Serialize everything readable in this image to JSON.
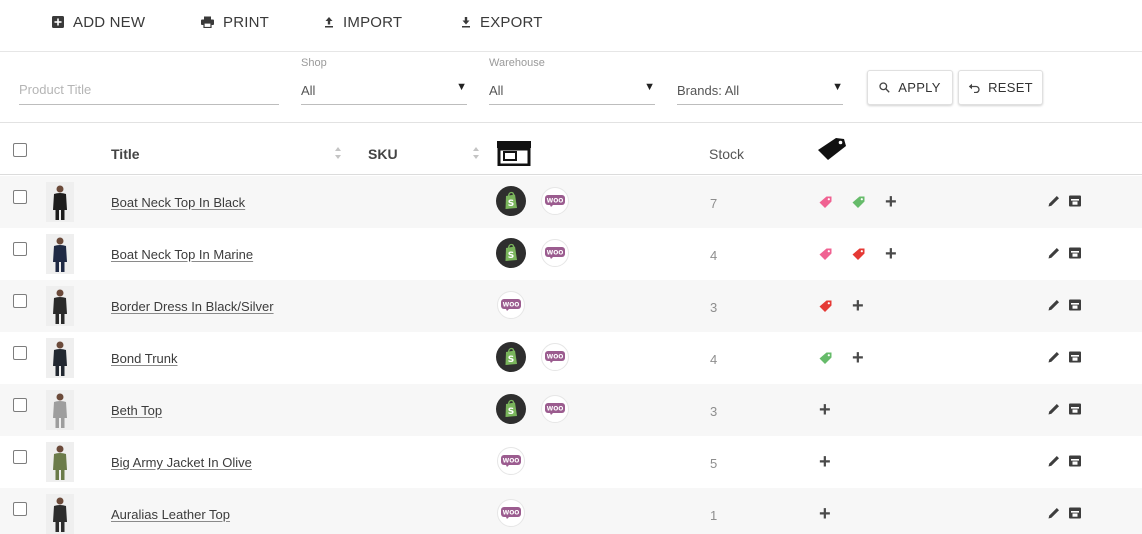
{
  "toolbar": {
    "add_new": "ADD NEW",
    "print": "PRINT",
    "import": "IMPORT",
    "export": "EXPORT"
  },
  "filters": {
    "product_title_placeholder": "Product Title",
    "shop_label": "Shop",
    "shop_value": "All",
    "warehouse_label": "Warehouse",
    "warehouse_value": "All",
    "brands_value": "Brands: All",
    "apply": "APPLY",
    "reset": "RESET"
  },
  "table": {
    "columns": {
      "title": "Title",
      "sku": "SKU",
      "shop_icon": "shop-icon",
      "stock": "Stock",
      "tags_icon": "tag-icon"
    },
    "rows": [
      {
        "title": "Boat Neck Top In Black",
        "stock": "7",
        "shopify": true,
        "woo": true,
        "tags": [
          "#f06292",
          "#66bb6a"
        ],
        "figure": "#1e1e1e"
      },
      {
        "title": "Boat Neck Top In Marine",
        "stock": "4",
        "shopify": true,
        "woo": true,
        "tags": [
          "#f06292",
          "#e53935"
        ],
        "figure": "#1f2a44"
      },
      {
        "title": "Border Dress In Black/Silver",
        "stock": "3",
        "shopify": false,
        "woo": true,
        "tags": [
          "#e53935"
        ],
        "figure": "#2a2a2a"
      },
      {
        "title": "Bond Trunk",
        "stock": "4",
        "shopify": true,
        "woo": true,
        "tags": [
          "#66bb6a"
        ],
        "figure": "#222831"
      },
      {
        "title": "Beth Top",
        "stock": "3",
        "shopify": true,
        "woo": true,
        "tags": [],
        "figure": "#9e9e9e"
      },
      {
        "title": "Big Army Jacket In Olive",
        "stock": "5",
        "shopify": false,
        "woo": true,
        "tags": [],
        "figure": "#6b7b4a"
      },
      {
        "title": "Auralias Leather Top",
        "stock": "1",
        "shopify": false,
        "woo": true,
        "tags": [],
        "figure": "#2d2d2d"
      }
    ]
  },
  "icons": {
    "add": "add-box-icon",
    "print": "printer-icon",
    "import": "upload-icon",
    "export": "download-icon",
    "search": "search-icon",
    "undo": "undo-icon",
    "edit": "pencil-icon",
    "archive": "archive-icon",
    "add_tag": "plus-icon"
  },
  "colors": {
    "shopify_bg": "#2e2e2e",
    "shopify_green": "#7ab55c",
    "woo_purple": "#9b5c8f",
    "tag_pink": "#f06292",
    "tag_green": "#66bb6a",
    "tag_red": "#e53935"
  }
}
